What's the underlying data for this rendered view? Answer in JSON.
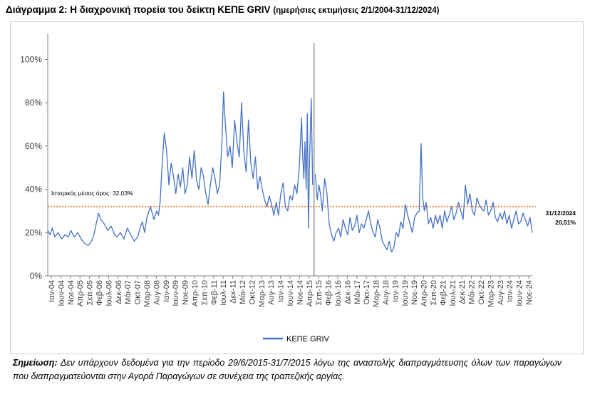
{
  "header": {
    "title": "Διάγραμμα 2: Η διαχρονική πορεία του δείκτη ΚΕΠΕ GRIV",
    "subtitle": "(ημερήσιες εκτιμήσεις 2/1/2004-31/12/2024)"
  },
  "note": {
    "label": "Σημείωση:",
    "text": " Δεν υπάρχουν δεδομένα για την περίοδο 29/6/2015-31/7/2015 λόγω της αναστολής διαπραγμάτευσης όλων των παραγώγων που διαπραγματεύονται στην Αγορά Παραγώγων σε συνέχεια της τραπεζικής αργίας."
  },
  "colors": {
    "series": "#4472C4",
    "average": "#ED7D31",
    "gap": "#C8C8C8"
  },
  "chart_data": {
    "type": "line",
    "title": "Η διαχρονική πορεία του δείκτη ΚΕΠΕ GRIV",
    "ylim": [
      0,
      1.12
    ],
    "yticks": [
      0,
      0.2,
      0.4,
      0.6,
      0.8,
      1.0
    ],
    "ytick_labels": [
      "0%",
      "20%",
      "40%",
      "60%",
      "80%",
      "100%"
    ],
    "x_start": 2004.0,
    "x_end": 2025.0,
    "xtick_labels": [
      "Ιαν-04",
      "Ιουν-04",
      "Νοε-04",
      "Απρ-05",
      "Σεπ-05",
      "Φεβ-06",
      "Ιουλ-06",
      "Δεκ-06",
      "Μάι-07",
      "Οκτ-07",
      "Μαρ-08",
      "Αυγ-08",
      "Ιαν-09",
      "Ιουν-09",
      "Νοε-09",
      "Απρ-10",
      "Σεπ-10",
      "Φεβ-11",
      "Ιουλ-11",
      "Δεκ-11",
      "Μάι-12",
      "Οκτ-12",
      "Μαρ-13",
      "Αυγ-13",
      "Ιαν-14",
      "Ιουν-14",
      "Νοε-14",
      "Απρ-15",
      "Σεπ-15",
      "Φεβ-16",
      "Ιουλ-16",
      "Δεκ-16",
      "Μάι-17",
      "Οκτ-17",
      "Μαρ-18",
      "Αυγ-18",
      "Ιαν-19",
      "Ιουν-19",
      "Νοε-19",
      "Απρ-20",
      "Σεπ-20",
      "Φεβ-21",
      "Ιουλ-21",
      "Δεκ-21",
      "Μάι-22",
      "Οκτ-22",
      "Μαρ-23",
      "Αυγ-23",
      "Ιαν-24",
      "Ιουν-24",
      "Νοε-24"
    ],
    "series": [
      {
        "name": "ΚΕΠΕ GRIV",
        "x": [
          2004.0,
          2004.1,
          2004.2,
          2004.3,
          2004.45,
          2004.6,
          2004.75,
          2004.9,
          2005.0,
          2005.15,
          2005.3,
          2005.45,
          2005.6,
          2005.75,
          2005.9,
          2006.0,
          2006.1,
          2006.2,
          2006.3,
          2006.45,
          2006.6,
          2006.75,
          2006.9,
          2007.0,
          2007.15,
          2007.3,
          2007.45,
          2007.6,
          2007.75,
          2007.9,
          2008.0,
          2008.1,
          2008.2,
          2008.3,
          2008.45,
          2008.6,
          2008.72,
          2008.8,
          2008.87,
          2008.95,
          2009.05,
          2009.15,
          2009.25,
          2009.35,
          2009.45,
          2009.55,
          2009.65,
          2009.75,
          2009.85,
          2009.95,
          2010.05,
          2010.15,
          2010.25,
          2010.35,
          2010.45,
          2010.55,
          2010.65,
          2010.75,
          2010.85,
          2010.95,
          2011.05,
          2011.15,
          2011.25,
          2011.35,
          2011.45,
          2011.55,
          2011.62,
          2011.7,
          2011.8,
          2011.9,
          2012.0,
          2012.1,
          2012.2,
          2012.3,
          2012.4,
          2012.5,
          2012.6,
          2012.7,
          2012.8,
          2012.9,
          2013.0,
          2013.1,
          2013.2,
          2013.3,
          2013.4,
          2013.5,
          2013.6,
          2013.7,
          2013.8,
          2013.9,
          2014.0,
          2014.1,
          2014.2,
          2014.3,
          2014.4,
          2014.5,
          2014.6,
          2014.7,
          2014.8,
          2014.9,
          2015.0,
          2015.05,
          2015.1,
          2015.15,
          2015.2,
          2015.25,
          2015.3,
          2015.35,
          2015.42,
          2015.48,
          null,
          2015.6,
          2015.68,
          2015.75,
          2015.82,
          2015.9,
          2016.0,
          2016.1,
          2016.2,
          2016.3,
          2016.4,
          2016.5,
          2016.6,
          2016.7,
          2016.8,
          2016.9,
          2017.0,
          2017.1,
          2017.2,
          2017.3,
          2017.4,
          2017.5,
          2017.6,
          2017.7,
          2017.8,
          2017.9,
          2018.0,
          2018.1,
          2018.2,
          2018.3,
          2018.4,
          2018.5,
          2018.6,
          2018.7,
          2018.8,
          2018.9,
          2019.0,
          2019.1,
          2019.2,
          2019.3,
          2019.4,
          2019.5,
          2019.6,
          2019.7,
          2019.8,
          2019.9,
          2020.0,
          2020.1,
          2020.18,
          2020.25,
          2020.32,
          2020.4,
          2020.5,
          2020.6,
          2020.7,
          2020.8,
          2020.9,
          2021.0,
          2021.1,
          2021.2,
          2021.3,
          2021.4,
          2021.5,
          2021.6,
          2021.7,
          2021.8,
          2021.9,
          2022.0,
          2022.1,
          2022.2,
          2022.3,
          2022.4,
          2022.5,
          2022.6,
          2022.7,
          2022.8,
          2022.9,
          2023.0,
          2023.1,
          2023.2,
          2023.3,
          2023.4,
          2023.5,
          2023.6,
          2023.7,
          2023.8,
          2023.9,
          2024.0,
          2024.1,
          2024.2,
          2024.3,
          2024.4,
          2024.5,
          2024.6,
          2024.7,
          2024.8,
          2024.9,
          2025.0
        ],
        "values": [
          0.21,
          0.19,
          0.22,
          0.18,
          0.2,
          0.17,
          0.19,
          0.18,
          0.21,
          0.18,
          0.2,
          0.17,
          0.15,
          0.14,
          0.16,
          0.19,
          0.24,
          0.29,
          0.26,
          0.24,
          0.21,
          0.23,
          0.19,
          0.18,
          0.2,
          0.17,
          0.22,
          0.19,
          0.16,
          0.18,
          0.22,
          0.25,
          0.2,
          0.27,
          0.32,
          0.26,
          0.3,
          0.28,
          0.34,
          0.5,
          0.66,
          0.58,
          0.42,
          0.52,
          0.46,
          0.38,
          0.47,
          0.41,
          0.5,
          0.38,
          0.42,
          0.55,
          0.45,
          0.58,
          0.44,
          0.4,
          0.5,
          0.46,
          0.38,
          0.33,
          0.42,
          0.5,
          0.45,
          0.38,
          0.42,
          0.62,
          0.85,
          0.7,
          0.55,
          0.6,
          0.5,
          0.72,
          0.62,
          0.55,
          0.8,
          0.57,
          0.48,
          0.72,
          0.52,
          0.45,
          0.55,
          0.4,
          0.46,
          0.4,
          0.35,
          0.32,
          0.37,
          0.33,
          0.28,
          0.34,
          0.28,
          0.38,
          0.43,
          0.32,
          0.3,
          0.37,
          0.35,
          0.42,
          0.38,
          0.5,
          0.73,
          0.55,
          0.45,
          0.62,
          0.4,
          0.75,
          0.22,
          0.55,
          0.82,
          0.42,
          null,
          0.47,
          0.35,
          0.42,
          0.38,
          0.3,
          0.45,
          0.38,
          0.24,
          0.19,
          0.16,
          0.2,
          0.22,
          0.18,
          0.26,
          0.22,
          0.19,
          0.27,
          0.21,
          0.23,
          0.28,
          0.2,
          0.24,
          0.22,
          0.26,
          0.3,
          0.24,
          0.2,
          0.18,
          0.26,
          0.22,
          0.16,
          0.14,
          0.12,
          0.16,
          0.11,
          0.13,
          0.2,
          0.18,
          0.25,
          0.22,
          0.33,
          0.28,
          0.24,
          0.2,
          0.27,
          0.29,
          0.3,
          0.61,
          0.36,
          0.3,
          0.34,
          0.24,
          0.27,
          0.22,
          0.28,
          0.24,
          0.28,
          0.22,
          0.3,
          0.25,
          0.28,
          0.32,
          0.26,
          0.29,
          0.34,
          0.3,
          0.26,
          0.42,
          0.33,
          0.38,
          0.3,
          0.28,
          0.36,
          0.33,
          0.31,
          0.3,
          0.35,
          0.28,
          0.3,
          0.34,
          0.27,
          0.25,
          0.29,
          0.26,
          0.3,
          0.24,
          0.28,
          0.22,
          0.26,
          0.3,
          0.24,
          0.25,
          0.29,
          0.26,
          0.23,
          0.27,
          0.2
        ]
      }
    ],
    "average": {
      "value": 0.3203,
      "label": "Ιστορικός μέσος όρος: 32,03%"
    },
    "gap": {
      "start": 2015.49,
      "end": 2015.58
    },
    "end_annotation": {
      "date": "31/12/2024",
      "value_label": "20,51%"
    },
    "legend": {
      "label": "ΚΕΠΕ GRIV",
      "position": "bottom"
    }
  }
}
